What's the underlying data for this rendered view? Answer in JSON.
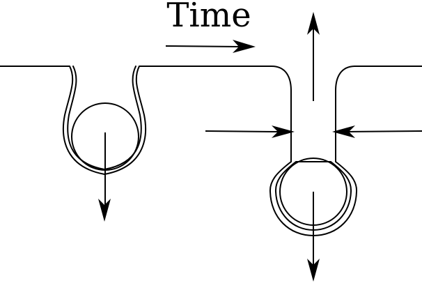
{
  "title": "Time",
  "colors": {
    "stroke": "#000000",
    "background": "#ffffff"
  },
  "stages": [
    {
      "name": "bud-attached",
      "arrows": [
        "down"
      ]
    },
    {
      "name": "bud-pinching-off",
      "arrows": [
        "up",
        "down",
        "inward-left",
        "inward-right"
      ]
    }
  ]
}
